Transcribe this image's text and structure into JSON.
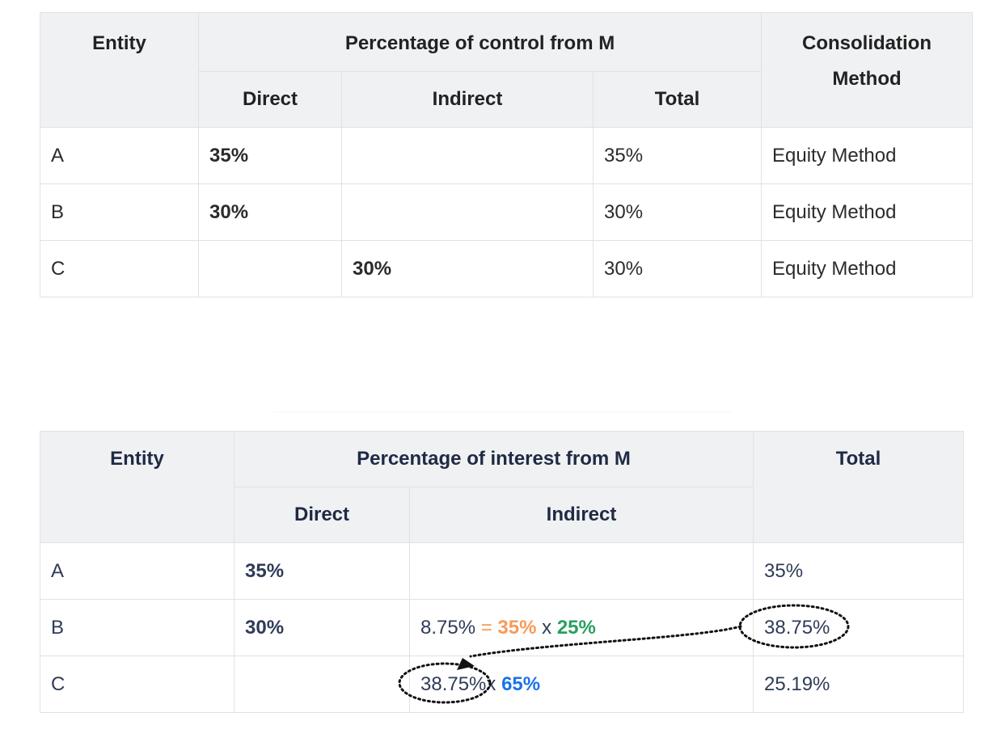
{
  "control_table": {
    "headers": {
      "entity": "Entity",
      "group": "Percentage of control from M",
      "direct": "Direct",
      "indirect": "Indirect",
      "total": "Total",
      "method": "Consolidation Method"
    },
    "rows": [
      {
        "entity": "A",
        "direct": "35%",
        "indirect": "",
        "total": "35%",
        "method": "Equity Method"
      },
      {
        "entity": "B",
        "direct": "30%",
        "indirect": "",
        "total": "30%",
        "method": "Equity Method"
      },
      {
        "entity": "C",
        "direct": "",
        "indirect": "30%",
        "total": "30%",
        "method": "Equity Method"
      }
    ]
  },
  "interest_table": {
    "headers": {
      "entity": "Entity",
      "group": "Percentage of interest from M",
      "direct": "Direct",
      "indirect": "Indirect",
      "total": "Total"
    },
    "rows": [
      {
        "entity": "A",
        "direct": "35%",
        "total": "35%"
      },
      {
        "entity": "B",
        "direct": "30%",
        "indirect_result": "8.75%",
        "equals": "=",
        "factor1": "35%",
        "times": "x",
        "factor2": "25%",
        "total": "38.75%"
      },
      {
        "entity": "C",
        "indirect_base": "38.75%",
        "times": "x",
        "factor": "65%",
        "total": "25.19%"
      }
    ]
  },
  "colors": {
    "orange": "#f5a010",
    "red": "#c8382a",
    "salmon": "#f79a5a",
    "green": "#27a060",
    "blue": "#1a73e8"
  }
}
